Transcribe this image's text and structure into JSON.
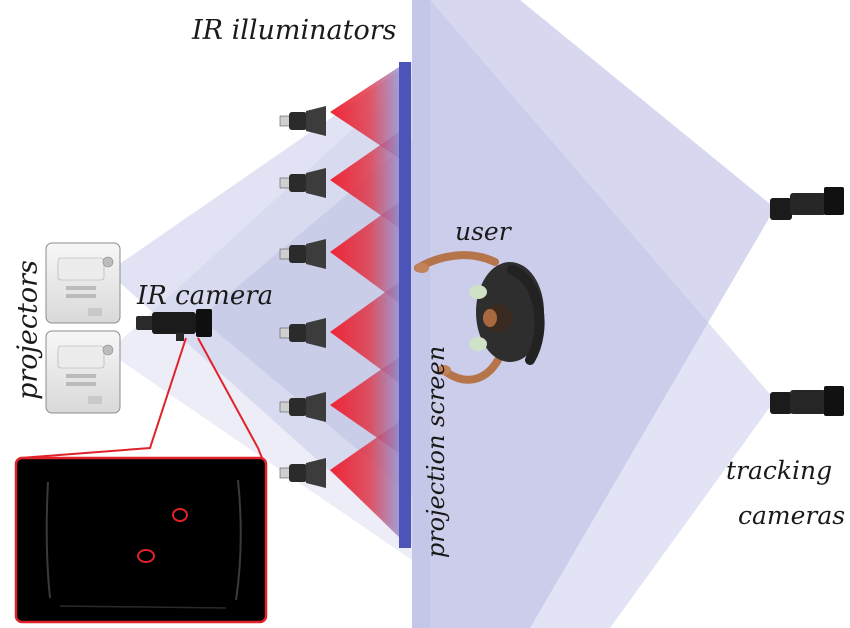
{
  "labels": {
    "ir_illuminators": "IR illuminators",
    "ir_camera": "IR camera",
    "projectors": "projectors",
    "user": "user",
    "projection_screen": "projection screen",
    "tracking_cameras_line1": "tracking",
    "tracking_cameras_line2": "cameras"
  },
  "colors": {
    "projection_cone": "#c9cbe9",
    "screen_bar": "#4b55b8",
    "ir_glow": "#ef1b2d",
    "highlight_outline": "#e0232b",
    "camera_body": "#1b1b1b",
    "inset_background": "#000000"
  },
  "icons": [
    "projector-icon",
    "ir-camera-icon",
    "ir-illuminator-icon",
    "tracking-camera-icon",
    "user-figure-icon"
  ]
}
